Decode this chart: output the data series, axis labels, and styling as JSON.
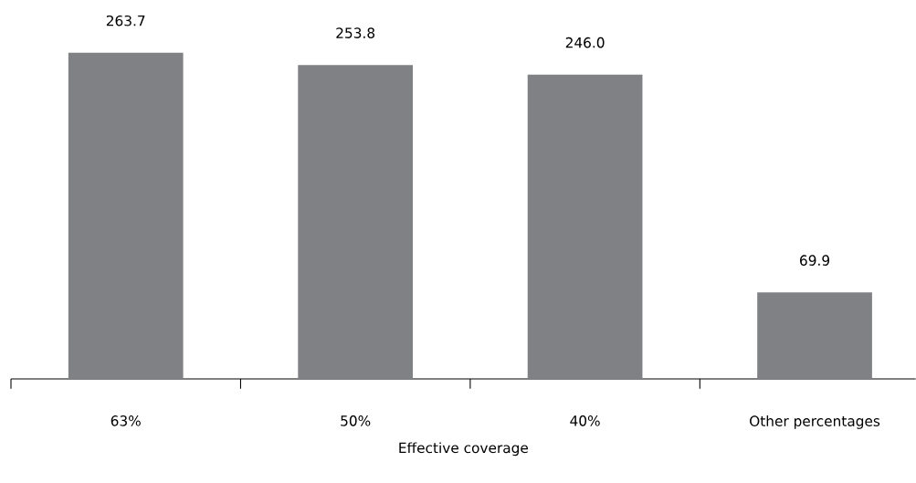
{
  "chart_data": {
    "type": "bar",
    "xlabel": "Effective coverage",
    "categories": [
      "63%",
      "50%",
      "40%",
      "Other percentages"
    ],
    "values": [
      263.7,
      253.8,
      246.0,
      69.9
    ],
    "value_labels": [
      "263.7",
      "253.8",
      "246.0",
      "69.9"
    ],
    "color": "#808184"
  }
}
